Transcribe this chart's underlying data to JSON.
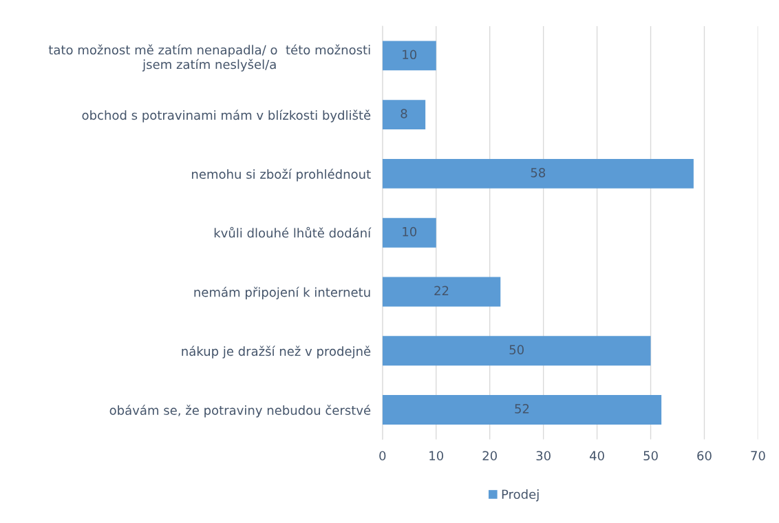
{
  "chart_data": {
    "type": "bar",
    "orientation": "horizontal",
    "categories": [
      "tato možnost mě zatím nenapadla/ o  této možnosti\njsem zatím neslyšel/a",
      "obchod s potravinami mám v blízkosti bydliště",
      "nemohu si zboží prohlédnout",
      "kvůli dlouhé lhůtě dodání",
      "nemám připojení k internetu",
      "nákup je dražší než v prodejně",
      "obávám se, že potraviny nebudou čerstvé"
    ],
    "series": [
      {
        "name": "Prodej",
        "color": "#5b9bd5",
        "values": [
          10,
          8,
          58,
          10,
          22,
          50,
          52
        ]
      }
    ],
    "xlim": [
      0,
      70
    ],
    "xticks": [
      0,
      10,
      20,
      30,
      40,
      50,
      60,
      70
    ],
    "grid": "x",
    "legend": "bottom",
    "data_labels": true
  }
}
